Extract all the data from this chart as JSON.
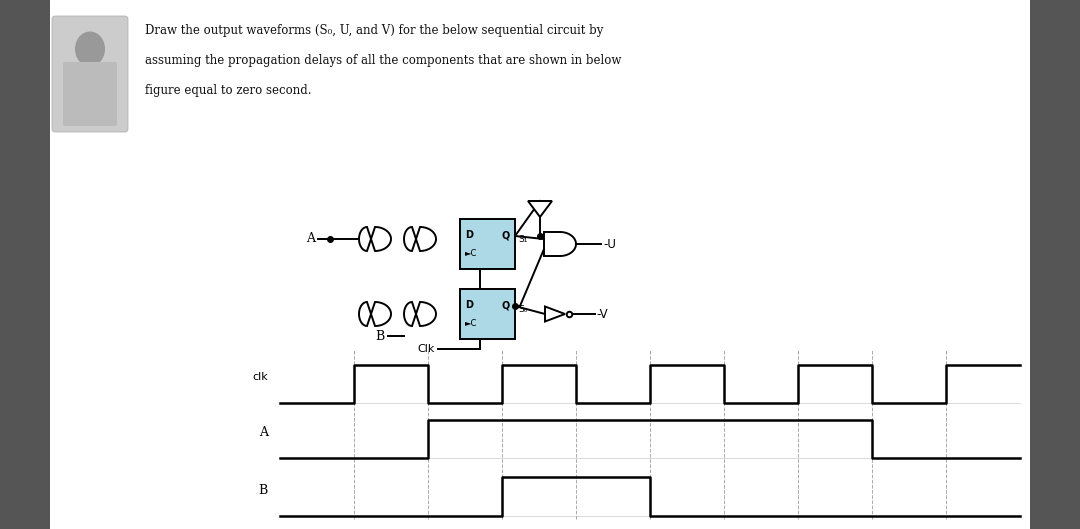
{
  "bg_color": "#f0f0f0",
  "fig_width": 10.8,
  "fig_height": 5.29,
  "clk_times": [
    0,
    1,
    1,
    2,
    2,
    3,
    3,
    4,
    4,
    5,
    5,
    6,
    6,
    7,
    7,
    8,
    8,
    9,
    9,
    10
  ],
  "clk_values": [
    0,
    0,
    1,
    1,
    0,
    0,
    1,
    1,
    0,
    0,
    1,
    1,
    0,
    0,
    1,
    1,
    0,
    0,
    1,
    1
  ],
  "A_times": [
    0,
    2,
    2,
    8,
    8,
    10
  ],
  "A_values": [
    0,
    0,
    1,
    1,
    0,
    0
  ],
  "B_times": [
    0,
    3,
    3,
    5,
    5,
    10
  ],
  "B_values": [
    0,
    0,
    1,
    1,
    0,
    0
  ],
  "grid_times": [
    1,
    2,
    3,
    4,
    5,
    6,
    7,
    8,
    9
  ],
  "flipflop_fill": "#add8e6",
  "wire_color": "#000000",
  "title_line1": "Draw the output waveforms (S",
  "title_line1b": "o",
  "title_line1c": ", U, and V) for the below sequential circuit by",
  "title_line2": "assuming the propagation delays of all the components that are shown in below",
  "title_line3": "figure equal to zero second."
}
